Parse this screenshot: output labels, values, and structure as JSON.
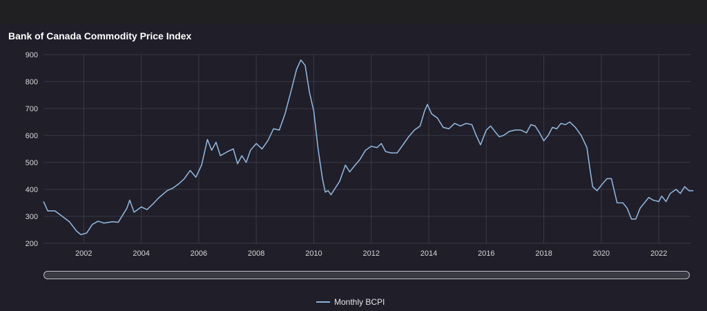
{
  "chart_data": {
    "type": "line",
    "title": "Bank of Canada Commodity Price Index",
    "xlabel": "",
    "ylabel": "",
    "xlim": [
      2000.6,
      2023.1
    ],
    "ylim": [
      200,
      900
    ],
    "yticks": [
      200,
      300,
      400,
      500,
      600,
      700,
      800,
      900
    ],
    "xticks": [
      2002,
      2004,
      2006,
      2008,
      2010,
      2012,
      2014,
      2016,
      2018,
      2020,
      2022
    ],
    "grid": true,
    "legend_position": "bottom-center",
    "series": [
      {
        "name": "Monthly BCPI",
        "color": "#8fb3d9",
        "points": [
          [
            2000.6,
            355
          ],
          [
            2000.75,
            320
          ],
          [
            2001.0,
            320
          ],
          [
            2001.25,
            300
          ],
          [
            2001.5,
            280
          ],
          [
            2001.75,
            245
          ],
          [
            2001.9,
            232
          ],
          [
            2002.1,
            238
          ],
          [
            2002.3,
            270
          ],
          [
            2002.5,
            282
          ],
          [
            2002.7,
            275
          ],
          [
            2003.0,
            280
          ],
          [
            2003.2,
            278
          ],
          [
            2003.5,
            330
          ],
          [
            2003.6,
            360
          ],
          [
            2003.75,
            315
          ],
          [
            2004.0,
            335
          ],
          [
            2004.2,
            325
          ],
          [
            2004.4,
            345
          ],
          [
            2004.6,
            368
          ],
          [
            2004.9,
            395
          ],
          [
            2005.1,
            405
          ],
          [
            2005.3,
            420
          ],
          [
            2005.5,
            440
          ],
          [
            2005.7,
            470
          ],
          [
            2005.9,
            445
          ],
          [
            2006.1,
            490
          ],
          [
            2006.3,
            585
          ],
          [
            2006.45,
            545
          ],
          [
            2006.6,
            575
          ],
          [
            2006.75,
            525
          ],
          [
            2007.0,
            540
          ],
          [
            2007.2,
            550
          ],
          [
            2007.35,
            495
          ],
          [
            2007.5,
            525
          ],
          [
            2007.65,
            500
          ],
          [
            2007.8,
            545
          ],
          [
            2008.0,
            570
          ],
          [
            2008.2,
            550
          ],
          [
            2008.4,
            580
          ],
          [
            2008.6,
            625
          ],
          [
            2008.8,
            620
          ],
          [
            2009.0,
            680
          ],
          [
            2009.2,
            760
          ],
          [
            2009.4,
            845
          ],
          [
            2009.55,
            880
          ],
          [
            2009.7,
            860
          ],
          [
            2009.85,
            760
          ],
          [
            2010.0,
            690
          ],
          [
            2010.15,
            550
          ],
          [
            2010.3,
            440
          ],
          [
            2010.4,
            390
          ],
          [
            2010.5,
            395
          ],
          [
            2010.6,
            380
          ],
          [
            2010.75,
            405
          ],
          [
            2010.9,
            430
          ],
          [
            2011.1,
            490
          ],
          [
            2011.25,
            465
          ],
          [
            2011.4,
            485
          ],
          [
            2011.6,
            510
          ],
          [
            2011.8,
            545
          ],
          [
            2012.0,
            560
          ],
          [
            2012.2,
            555
          ],
          [
            2012.35,
            570
          ],
          [
            2012.5,
            540
          ],
          [
            2012.7,
            535
          ],
          [
            2012.9,
            535
          ],
          [
            2013.1,
            565
          ],
          [
            2013.3,
            595
          ],
          [
            2013.5,
            620
          ],
          [
            2013.7,
            635
          ],
          [
            2013.85,
            690
          ],
          [
            2013.95,
            715
          ],
          [
            2014.1,
            680
          ],
          [
            2014.3,
            665
          ],
          [
            2014.5,
            630
          ],
          [
            2014.7,
            625
          ],
          [
            2014.9,
            645
          ],
          [
            2015.1,
            635
          ],
          [
            2015.3,
            645
          ],
          [
            2015.5,
            640
          ],
          [
            2015.65,
            600
          ],
          [
            2015.8,
            565
          ],
          [
            2016.0,
            620
          ],
          [
            2016.15,
            635
          ],
          [
            2016.3,
            615
          ],
          [
            2016.45,
            595
          ],
          [
            2016.6,
            600
          ],
          [
            2016.8,
            615
          ],
          [
            2017.0,
            620
          ],
          [
            2017.2,
            620
          ],
          [
            2017.4,
            610
          ],
          [
            2017.55,
            640
          ],
          [
            2017.7,
            635
          ],
          [
            2017.85,
            610
          ],
          [
            2018.0,
            580
          ],
          [
            2018.15,
            600
          ],
          [
            2018.3,
            630
          ],
          [
            2018.45,
            625
          ],
          [
            2018.6,
            645
          ],
          [
            2018.75,
            640
          ],
          [
            2018.9,
            650
          ],
          [
            2019.1,
            630
          ],
          [
            2019.3,
            600
          ],
          [
            2019.5,
            555
          ],
          [
            2019.6,
            480
          ],
          [
            2019.7,
            410
          ],
          [
            2019.85,
            395
          ],
          [
            2020.0,
            415
          ],
          [
            2020.2,
            440
          ],
          [
            2020.35,
            440
          ],
          [
            2020.55,
            350
          ],
          [
            2020.75,
            350
          ],
          [
            2020.9,
            330
          ],
          [
            2021.05,
            290
          ],
          [
            2021.2,
            290
          ],
          [
            2021.35,
            330
          ],
          [
            2021.5,
            350
          ],
          [
            2021.65,
            370
          ],
          [
            2021.8,
            360
          ],
          [
            2022.0,
            355
          ],
          [
            2022.1,
            375
          ],
          [
            2022.25,
            355
          ],
          [
            2022.4,
            385
          ],
          [
            2022.6,
            400
          ],
          [
            2022.75,
            385
          ],
          [
            2022.9,
            410
          ],
          [
            2023.05,
            395
          ],
          [
            2023.2,
            395
          ]
        ]
      }
    ]
  },
  "legend": {
    "label": "Monthly BCPI"
  }
}
